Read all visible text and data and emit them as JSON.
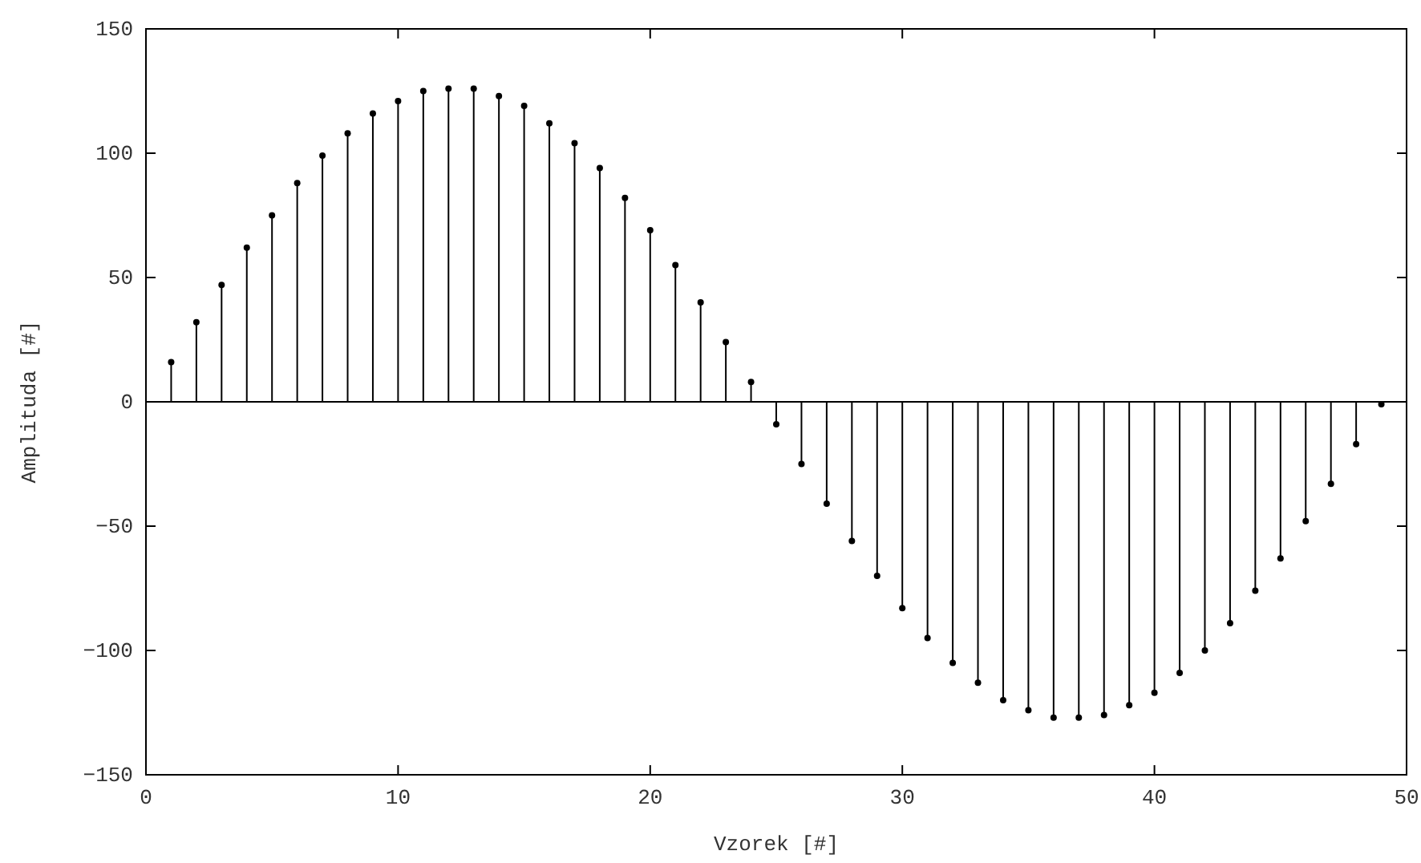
{
  "chart_data": {
    "type": "lollipop",
    "xlabel": "Vzorek [#]",
    "ylabel": "Amplituda [#]",
    "x": [
      1,
      2,
      3,
      4,
      5,
      6,
      7,
      8,
      9,
      10,
      11,
      12,
      13,
      14,
      15,
      16,
      17,
      18,
      19,
      20,
      21,
      22,
      23,
      24,
      25,
      26,
      27,
      28,
      29,
      30,
      31,
      32,
      33,
      34,
      35,
      36,
      37,
      38,
      39,
      40,
      41,
      42,
      43,
      44,
      45,
      46,
      47,
      48,
      49
    ],
    "values": [
      16,
      32,
      47,
      62,
      75,
      88,
      99,
      108,
      116,
      121,
      125,
      126,
      126,
      123,
      119,
      112,
      104,
      94,
      82,
      69,
      55,
      40,
      24,
      8,
      -9,
      -25,
      -41,
      -56,
      -70,
      -83,
      -95,
      -105,
      -113,
      -120,
      -124,
      -127,
      -127,
      -126,
      -122,
      -117,
      -109,
      -100,
      -89,
      -76,
      -63,
      -48,
      -33,
      -17,
      -1
    ],
    "color": "#000000",
    "marker": "circle",
    "xlim": [
      0,
      50
    ],
    "xticks": [
      0,
      10,
      20,
      30,
      40,
      50
    ],
    "ylim": [
      -150,
      150
    ],
    "yticks": [
      -150,
      -100,
      -50,
      0,
      50,
      100,
      150
    ]
  }
}
